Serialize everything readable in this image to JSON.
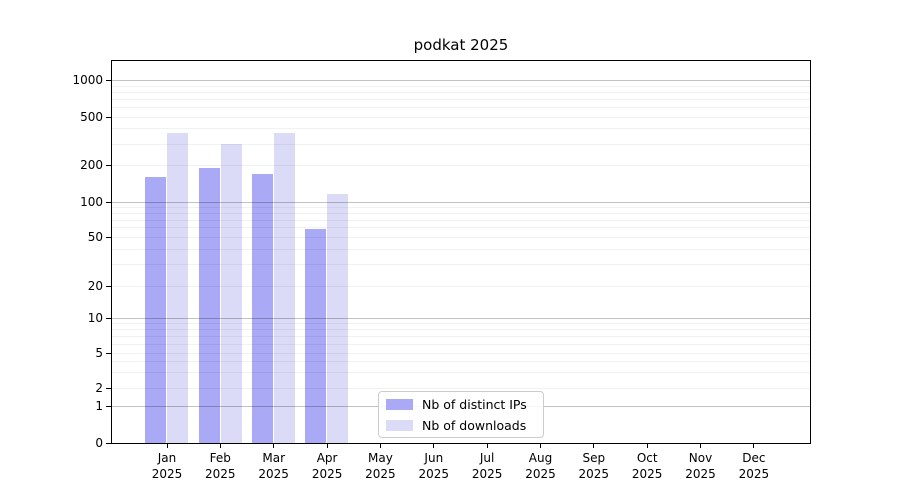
{
  "chart_data": {
    "type": "bar",
    "title": "podkat 2025",
    "categories": [
      "Jan 2025",
      "Feb 2025",
      "Mar 2025",
      "Apr 2025",
      "May 2025",
      "Jun 2025",
      "Jul 2025",
      "Aug 2025",
      "Sep 2025",
      "Oct 2025",
      "Nov 2025",
      "Dec 2025"
    ],
    "series": [
      {
        "name": "Nb of distinct IPs",
        "color": "#a9a9f5",
        "values": [
          160,
          190,
          170,
          58,
          null,
          null,
          null,
          null,
          null,
          null,
          null,
          null
        ]
      },
      {
        "name": "Nb of downloads",
        "color": "#dbdbf7",
        "values": [
          370,
          295,
          370,
          115,
          null,
          null,
          null,
          null,
          null,
          null,
          null,
          null
        ]
      }
    ],
    "xlabel": "",
    "ylabel": "",
    "yscale": "symlog",
    "yticks": [
      0,
      1,
      2,
      5,
      10,
      20,
      50,
      100,
      200,
      500,
      1000
    ],
    "ylim": [
      0,
      1450
    ],
    "grid": "horizontal log minor + darker decade lines, drawn over bars",
    "legend_position": "lower center",
    "layout": {
      "scale_anchors": [
        [
          0,
          0.001
        ],
        [
          1,
          0.0962
        ],
        [
          2,
          0.1443
        ],
        [
          5,
          0.2358
        ],
        [
          10,
          0.3273
        ],
        [
          20,
          0.4099
        ],
        [
          50,
          0.5407
        ],
        [
          100,
          0.6322
        ],
        [
          200,
          0.7281
        ],
        [
          500,
          0.8544
        ],
        [
          1000,
          0.9503
        ]
      ],
      "minor_gridline_values": [
        2,
        3,
        4,
        5,
        6,
        7,
        8,
        9,
        20,
        30,
        40,
        50,
        60,
        70,
        80,
        90,
        200,
        300,
        400,
        500,
        600,
        700,
        800,
        900
      ],
      "major_gridline_values": [
        1,
        10,
        100,
        1000
      ]
    }
  }
}
